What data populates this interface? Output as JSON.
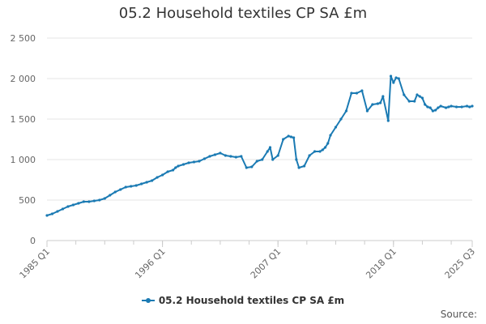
{
  "chart_data": {
    "type": "line",
    "title": "05.2 Household textiles CP SA £m",
    "xlabel": "",
    "ylabel": "",
    "ylim": [
      0,
      2500
    ],
    "y_ticks": [
      "0",
      "500",
      "1 000",
      "1 500",
      "2 000",
      "2 500"
    ],
    "y_tick_values": [
      0,
      500,
      1000,
      1500,
      2000,
      2500
    ],
    "x_tick_labels": [
      "1985 Q1",
      "1996 Q1",
      "2007 Q1",
      "2018 Q1",
      "2025 Q3"
    ],
    "x_tick_values": [
      1985.0,
      1996.0,
      2007.0,
      2018.0,
      2025.5
    ],
    "grid": "horizontal",
    "legend_position": "bottom",
    "color": "#1a7ab3",
    "series": [
      {
        "name": "05.2 Household textiles CP SA £m",
        "x": [
          1985.0,
          1985.5,
          1986.0,
          1986.5,
          1987.0,
          1987.5,
          1988.0,
          1988.5,
          1989.0,
          1989.5,
          1990.0,
          1990.5,
          1991.0,
          1991.5,
          1992.0,
          1992.5,
          1993.0,
          1993.5,
          1994.0,
          1994.5,
          1995.0,
          1995.5,
          1996.0,
          1996.5,
          1997.0,
          1997.25,
          1997.5,
          1998.0,
          1998.5,
          1999.0,
          1999.5,
          2000.0,
          2000.5,
          2001.0,
          2001.5,
          2002.0,
          2002.5,
          2003.0,
          2003.5,
          2004.0,
          2004.5,
          2005.0,
          2005.5,
          2006.0,
          2006.25,
          2006.5,
          2007.0,
          2007.5,
          2008.0,
          2008.25,
          2008.5,
          2008.75,
          2009.0,
          2009.5,
          2010.0,
          2010.5,
          2011.0,
          2011.25,
          2011.5,
          2011.75,
          2012.0,
          2012.5,
          2013.0,
          2013.5,
          2014.0,
          2014.5,
          2015.0,
          2015.5,
          2016.0,
          2016.5,
          2016.75,
          2017.0,
          2017.5,
          2017.75,
          2018.0,
          2018.25,
          2018.5,
          2019.0,
          2019.5,
          2020.0,
          2020.25,
          2020.5,
          2020.75,
          2021.0,
          2021.25,
          2021.5,
          2021.75,
          2022.0,
          2022.25,
          2022.5,
          2023.0,
          2023.25,
          2023.5,
          2024.0,
          2024.5,
          2025.0,
          2025.25,
          2025.5
        ],
        "values": [
          310,
          330,
          360,
          390,
          420,
          440,
          460,
          480,
          480,
          490,
          500,
          520,
          560,
          600,
          630,
          660,
          670,
          680,
          700,
          720,
          740,
          780,
          810,
          850,
          870,
          900,
          920,
          940,
          960,
          970,
          980,
          1010,
          1040,
          1060,
          1080,
          1050,
          1040,
          1030,
          1040,
          900,
          910,
          980,
          1000,
          1100,
          1150,
          1000,
          1050,
          1250,
          1290,
          1280,
          1270,
          1000,
          900,
          920,
          1050,
          1100,
          1100,
          1120,
          1150,
          1200,
          1300,
          1400,
          1500,
          1600,
          1820,
          1820,
          1850,
          1600,
          1680,
          1690,
          1700,
          1780,
          1480,
          2030,
          1950,
          2010,
          2000,
          1800,
          1720,
          1720,
          1800,
          1780,
          1760,
          1680,
          1650,
          1640,
          1600,
          1610,
          1640,
          1660,
          1640,
          1650,
          1660,
          1650,
          1650,
          1660,
          1650,
          1660
        ]
      }
    ],
    "source_label": "Source:"
  }
}
